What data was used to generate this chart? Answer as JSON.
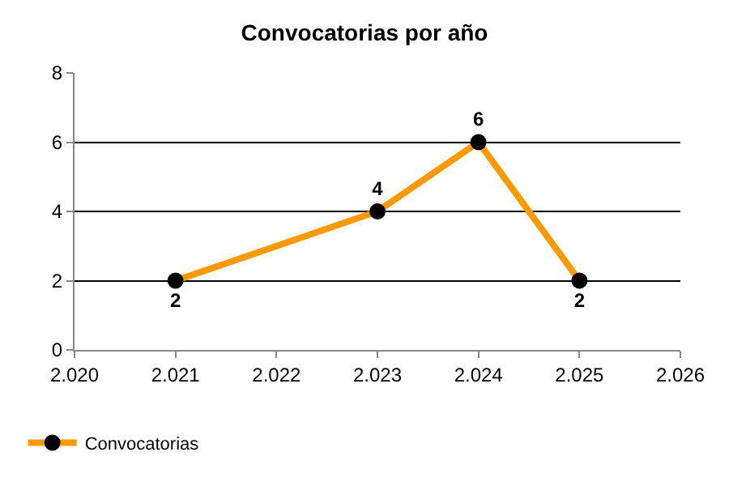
{
  "chart_data": {
    "type": "line",
    "title": "Convocatorias por año",
    "x": [
      2021,
      2023,
      2024,
      2025
    ],
    "series": [
      {
        "name": "Convocatorias",
        "color": "#ff9900",
        "values": [
          2,
          4,
          6,
          2
        ]
      }
    ],
    "xlim": [
      2020,
      2026
    ],
    "xticks": [
      {
        "value": 2020,
        "label": "2.020"
      },
      {
        "value": 2021,
        "label": "2.021"
      },
      {
        "value": 2022,
        "label": "2.022"
      },
      {
        "value": 2023,
        "label": "2.023"
      },
      {
        "value": 2024,
        "label": "2.024"
      },
      {
        "value": 2025,
        "label": "2.025"
      },
      {
        "value": 2026,
        "label": "2.026"
      }
    ],
    "ylim": [
      0,
      8
    ],
    "yticks": [
      0,
      2,
      4,
      6,
      8
    ],
    "grid": "y",
    "legend": "bottom left",
    "marker": "circle",
    "line_style": "solid",
    "data_labels": true
  }
}
